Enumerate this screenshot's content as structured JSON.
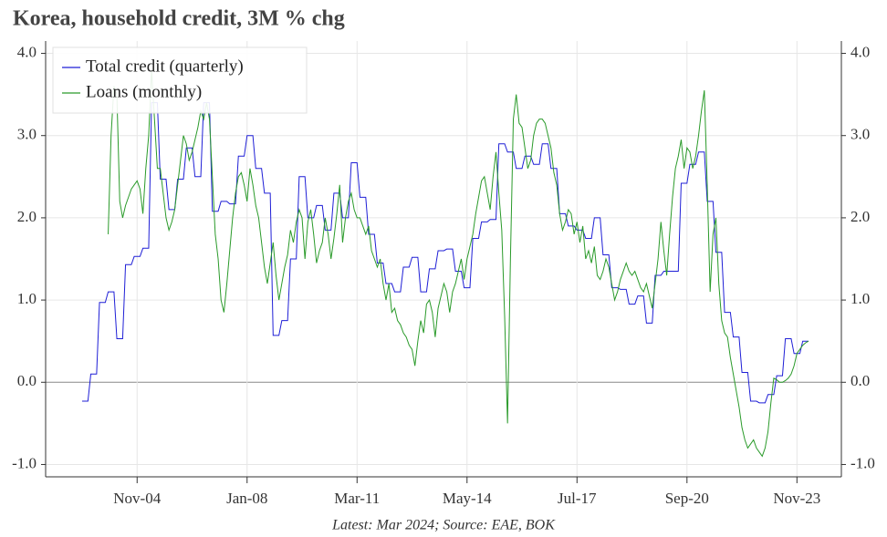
{
  "chart_data": {
    "type": "line",
    "title": "Korea, household credit, 3M % chg",
    "footnote": "Latest: Mar 2024; Source: EAE, BOK",
    "x": [
      "Apr-03",
      "May-03",
      "Jun-03",
      "Jul-03",
      "Aug-03",
      "Sep-03",
      "Oct-03",
      "Nov-03",
      "Dec-03",
      "Jan-04",
      "Feb-04",
      "Mar-04",
      "Apr-04",
      "May-04",
      "Jun-04",
      "Jul-04",
      "Aug-04",
      "Sep-04",
      "Oct-04",
      "Nov-04",
      "Dec-04",
      "Jan-05",
      "Feb-05",
      "Mar-05",
      "Apr-05",
      "May-05",
      "Jun-05",
      "Jul-05",
      "Aug-05",
      "Sep-05",
      "Oct-05",
      "Nov-05",
      "Dec-05",
      "Jan-06",
      "Feb-06",
      "Mar-06",
      "Apr-06",
      "May-06",
      "Jun-06",
      "Jul-06",
      "Aug-06",
      "Sep-06",
      "Oct-06",
      "Nov-06",
      "Dec-06",
      "Jan-07",
      "Feb-07",
      "Mar-07",
      "Apr-07",
      "May-07",
      "Jun-07",
      "Jul-07",
      "Aug-07",
      "Sep-07",
      "Oct-07",
      "Nov-07",
      "Dec-07",
      "Jan-08",
      "Feb-08",
      "Mar-08",
      "Apr-08",
      "May-08",
      "Jun-08",
      "Jul-08",
      "Aug-08",
      "Sep-08",
      "Oct-08",
      "Nov-08",
      "Dec-08",
      "Jan-09",
      "Feb-09",
      "Mar-09",
      "Apr-09",
      "May-09",
      "Jun-09",
      "Jul-09",
      "Aug-09",
      "Sep-09",
      "Oct-09",
      "Nov-09",
      "Dec-09",
      "Jan-10",
      "Feb-10",
      "Mar-10",
      "Apr-10",
      "May-10",
      "Jun-10",
      "Jul-10",
      "Aug-10",
      "Sep-10",
      "Oct-10",
      "Nov-10",
      "Dec-10",
      "Jan-11",
      "Feb-11",
      "Mar-11",
      "Apr-11",
      "May-11",
      "Jun-11",
      "Jul-11",
      "Aug-11",
      "Sep-11",
      "Oct-11",
      "Nov-11",
      "Dec-11",
      "Jan-12",
      "Feb-12",
      "Mar-12",
      "Apr-12",
      "May-12",
      "Jun-12",
      "Jul-12",
      "Aug-12",
      "Sep-12",
      "Oct-12",
      "Nov-12",
      "Dec-12",
      "Jan-13",
      "Feb-13",
      "Mar-13",
      "Apr-13",
      "May-13",
      "Jun-13",
      "Jul-13",
      "Aug-13",
      "Sep-13",
      "Oct-13",
      "Nov-13",
      "Dec-13",
      "Jan-14",
      "Feb-14",
      "Mar-14",
      "Apr-14",
      "May-14",
      "Jun-14",
      "Jul-14",
      "Aug-14",
      "Sep-14",
      "Oct-14",
      "Nov-14",
      "Dec-14",
      "Jan-15",
      "Feb-15",
      "Mar-15",
      "Apr-15",
      "May-15",
      "Jun-15",
      "Jul-15",
      "Aug-15",
      "Sep-15",
      "Oct-15",
      "Nov-15",
      "Dec-15",
      "Jan-16",
      "Feb-16",
      "Mar-16",
      "Apr-16",
      "May-16",
      "Jun-16",
      "Jul-16",
      "Aug-16",
      "Sep-16",
      "Oct-16",
      "Nov-16",
      "Dec-16",
      "Jan-17",
      "Feb-17",
      "Mar-17",
      "Apr-17",
      "May-17",
      "Jun-17",
      "Jul-17",
      "Aug-17",
      "Sep-17",
      "Oct-17",
      "Nov-17",
      "Dec-17",
      "Jan-18",
      "Feb-18",
      "Mar-18",
      "Apr-18",
      "May-18",
      "Jun-18",
      "Jul-18",
      "Aug-18",
      "Sep-18",
      "Oct-18",
      "Nov-18",
      "Dec-18",
      "Jan-19",
      "Feb-19",
      "Mar-19",
      "Apr-19",
      "May-19",
      "Jun-19",
      "Jul-19",
      "Aug-19",
      "Sep-19",
      "Oct-19",
      "Nov-19",
      "Dec-19",
      "Jan-20",
      "Feb-20",
      "Mar-20",
      "Apr-20",
      "May-20",
      "Jun-20",
      "Jul-20",
      "Aug-20",
      "Sep-20",
      "Oct-20",
      "Nov-20",
      "Dec-20",
      "Jan-21",
      "Feb-21",
      "Mar-21",
      "Apr-21",
      "May-21",
      "Jun-21",
      "Jul-21",
      "Aug-21",
      "Sep-21",
      "Oct-21",
      "Nov-21",
      "Dec-21",
      "Jan-22",
      "Feb-22",
      "Mar-22",
      "Apr-22",
      "May-22",
      "Jun-22",
      "Jul-22",
      "Aug-22",
      "Sep-22",
      "Oct-22",
      "Nov-22",
      "Dec-22",
      "Jan-23",
      "Feb-23",
      "Mar-23",
      "Apr-23",
      "May-23",
      "Jun-23",
      "Jul-23",
      "Aug-23",
      "Sep-23",
      "Oct-23",
      "Nov-23",
      "Dec-23",
      "Jan-24",
      "Feb-24",
      "Mar-24"
    ],
    "xticks": [
      "Nov-04",
      "Jan-08",
      "Mar-11",
      "May-14",
      "Jul-17",
      "Sep-20",
      "Nov-23"
    ],
    "ylim": [
      -1.15,
      4.15
    ],
    "yticks": [
      {
        "value": -1,
        "label": "-1.0"
      },
      {
        "value": 0,
        "label": "0.0"
      },
      {
        "value": 1,
        "label": "1.0"
      },
      {
        "value": 2,
        "label": "2.0"
      },
      {
        "value": 3,
        "label": "3.0"
      },
      {
        "value": 4,
        "label": "4.0"
      }
    ],
    "grid": true,
    "legend": "upper left",
    "series": [
      {
        "name": "Total credit (quarterly)",
        "color": "#1f1fd6",
        "values": [
          -0.23,
          -0.23,
          -0.23,
          0.1,
          0.1,
          0.1,
          0.97,
          0.97,
          0.97,
          1.1,
          1.1,
          1.1,
          0.53,
          0.53,
          0.53,
          1.43,
          1.43,
          1.43,
          1.53,
          1.53,
          1.53,
          1.63,
          1.63,
          1.63,
          3.4,
          3.4,
          3.4,
          2.47,
          2.47,
          2.47,
          2.1,
          2.1,
          2.1,
          2.47,
          2.47,
          2.47,
          2.85,
          2.85,
          2.85,
          2.5,
          2.5,
          2.5,
          3.4,
          3.4,
          3.4,
          2.08,
          2.08,
          2.08,
          2.2,
          2.2,
          2.2,
          2.17,
          2.17,
          2.17,
          2.75,
          2.75,
          2.75,
          3.0,
          3.0,
          3.0,
          2.6,
          2.6,
          2.6,
          2.3,
          2.3,
          2.3,
          0.57,
          0.57,
          0.57,
          0.75,
          0.75,
          0.75,
          1.5,
          1.5,
          1.5,
          2.5,
          2.5,
          2.5,
          2.0,
          2.0,
          2.0,
          2.15,
          2.15,
          2.15,
          1.85,
          1.85,
          1.85,
          2.3,
          2.3,
          2.3,
          2.0,
          2.0,
          2.0,
          2.67,
          2.67,
          2.67,
          2.25,
          2.25,
          2.25,
          1.8,
          1.8,
          1.8,
          1.45,
          1.45,
          1.45,
          1.2,
          1.2,
          1.2,
          1.1,
          1.1,
          1.1,
          1.4,
          1.4,
          1.4,
          1.52,
          1.52,
          1.52,
          1.1,
          1.1,
          1.1,
          1.38,
          1.38,
          1.38,
          1.6,
          1.6,
          1.6,
          1.62,
          1.62,
          1.62,
          1.35,
          1.35,
          1.35,
          1.15,
          1.15,
          1.15,
          1.75,
          1.75,
          1.75,
          1.95,
          1.95,
          1.95,
          1.98,
          1.98,
          1.98,
          2.9,
          2.9,
          2.9,
          2.8,
          2.8,
          2.8,
          2.6,
          2.6,
          2.6,
          2.75,
          2.75,
          2.75,
          2.65,
          2.65,
          2.65,
          2.9,
          2.9,
          2.9,
          2.6,
          2.6,
          2.6,
          2.05,
          2.05,
          2.05,
          1.9,
          1.9,
          1.9,
          1.85,
          1.85,
          1.85,
          1.75,
          1.75,
          1.75,
          2.0,
          2.0,
          2.0,
          1.55,
          1.55,
          1.55,
          1.15,
          1.15,
          1.15,
          1.13,
          1.13,
          1.13,
          0.95,
          0.95,
          0.95,
          1.05,
          1.05,
          1.05,
          0.72,
          0.72,
          0.72,
          1.3,
          1.3,
          1.3,
          1.35,
          1.35,
          1.35,
          1.35,
          1.35,
          1.35,
          2.42,
          2.42,
          2.42,
          2.65,
          2.65,
          2.65,
          2.8,
          2.8,
          2.8,
          2.2,
          2.2,
          2.2,
          1.58,
          1.58,
          1.58,
          0.85,
          0.85,
          0.85,
          0.55,
          0.55,
          0.55,
          0.12,
          0.12,
          0.12,
          -0.23,
          -0.23,
          -0.23,
          -0.25,
          -0.25,
          -0.25,
          -0.15,
          -0.15,
          -0.15,
          0.08,
          0.08,
          0.08,
          0.53,
          0.53,
          0.53,
          0.35,
          0.35,
          0.35,
          0.5,
          0.5,
          0.5
        ]
      },
      {
        "name": "Loans (monthly)",
        "color": "#2a9a2a",
        "values": [
          null,
          null,
          null,
          null,
          null,
          null,
          null,
          null,
          null,
          1.8,
          3.0,
          3.6,
          3.5,
          2.2,
          2.0,
          2.15,
          2.25,
          2.35,
          2.4,
          2.45,
          2.35,
          2.05,
          2.6,
          3.0,
          3.8,
          3.2,
          2.6,
          2.6,
          2.3,
          2.0,
          1.85,
          1.95,
          2.1,
          2.4,
          2.7,
          3.0,
          2.9,
          2.7,
          2.8,
          2.95,
          3.1,
          3.3,
          3.2,
          3.4,
          3.2,
          2.5,
          1.8,
          1.5,
          1.0,
          0.85,
          1.2,
          1.6,
          2.0,
          2.3,
          2.5,
          2.55,
          2.4,
          2.2,
          2.6,
          2.4,
          2.15,
          2.0,
          1.7,
          1.4,
          1.2,
          1.45,
          1.7,
          1.3,
          1.0,
          1.2,
          1.4,
          1.55,
          1.85,
          1.7,
          1.95,
          2.1,
          2.0,
          1.5,
          1.95,
          2.1,
          1.8,
          1.45,
          1.6,
          1.7,
          2.0,
          1.8,
          1.5,
          1.75,
          2.05,
          2.4,
          1.7,
          2.0,
          2.2,
          2.3,
          2.1,
          2.0,
          2.0,
          1.9,
          1.8,
          1.9,
          1.6,
          1.5,
          1.4,
          1.5,
          1.2,
          1.0,
          1.2,
          0.85,
          0.9,
          0.75,
          0.7,
          0.6,
          0.55,
          0.45,
          0.4,
          0.2,
          0.5,
          0.75,
          0.6,
          0.95,
          1.0,
          0.85,
          0.55,
          0.9,
          1.05,
          1.2,
          1.1,
          0.85,
          1.1,
          1.2,
          1.35,
          1.5,
          1.25,
          1.5,
          1.65,
          1.8,
          2.05,
          2.25,
          2.45,
          2.5,
          2.3,
          2.1,
          2.5,
          2.8,
          2.3,
          1.85,
          0.8,
          -0.5,
          1.5,
          3.2,
          3.5,
          3.15,
          3.1,
          2.85,
          2.6,
          2.7,
          3.0,
          3.15,
          3.2,
          3.2,
          3.15,
          3.0,
          2.85,
          2.55,
          2.4,
          2.05,
          1.85,
          1.95,
          2.1,
          2.05,
          1.8,
          1.95,
          1.7,
          1.9,
          1.5,
          1.6,
          1.45,
          1.65,
          1.3,
          1.25,
          1.35,
          1.5,
          1.4,
          1.2,
          1.0,
          1.1,
          1.25,
          1.35,
          1.45,
          1.35,
          1.3,
          1.35,
          1.25,
          1.15,
          1.1,
          1.2,
          1.05,
          0.9,
          1.2,
          1.5,
          1.95,
          1.6,
          1.3,
          1.8,
          2.25,
          2.6,
          2.75,
          2.95,
          2.6,
          2.85,
          2.8,
          2.6,
          2.75,
          3.0,
          3.3,
          3.55,
          2.4,
          1.1,
          1.8,
          2.0,
          1.2,
          0.75,
          0.6,
          0.55,
          0.3,
          0.1,
          -0.1,
          -0.3,
          -0.55,
          -0.7,
          -0.8,
          -0.75,
          -0.7,
          -0.8,
          -0.85,
          -0.9,
          -0.8,
          -0.6,
          -0.25,
          0.05,
          0.03,
          0.0,
          0.0,
          0.02,
          0.05,
          0.1,
          0.2,
          0.35,
          0.4,
          0.45,
          0.48,
          0.5
        ]
      }
    ]
  }
}
